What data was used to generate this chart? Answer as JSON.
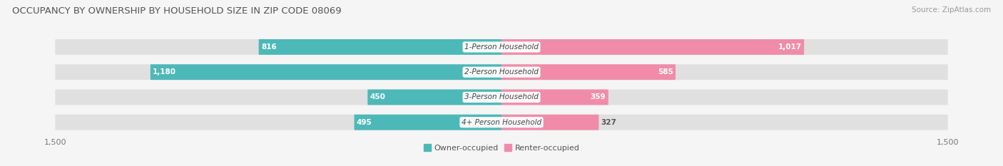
{
  "title": "OCCUPANCY BY OWNERSHIP BY HOUSEHOLD SIZE IN ZIP CODE 08069",
  "source": "Source: ZipAtlas.com",
  "categories": [
    "1-Person Household",
    "2-Person Household",
    "3-Person Household",
    "4+ Person Household"
  ],
  "owner_values": [
    816,
    1180,
    450,
    495
  ],
  "renter_values": [
    1017,
    585,
    359,
    327
  ],
  "owner_color": "#4db8b8",
  "renter_color": "#f08caa",
  "owner_color_light": "#8ed8d8",
  "renter_color_light": "#f5b8cc",
  "axis_max": 1500,
  "page_bg": "#f5f5f5",
  "row_bg": "#e8e8e8",
  "row_bg_alt": "#efefef",
  "title_fontsize": 9.5,
  "source_fontsize": 7.5,
  "label_fontsize": 7.5,
  "tick_fontsize": 8,
  "legend_fontsize": 8,
  "value_fontsize": 7.5
}
